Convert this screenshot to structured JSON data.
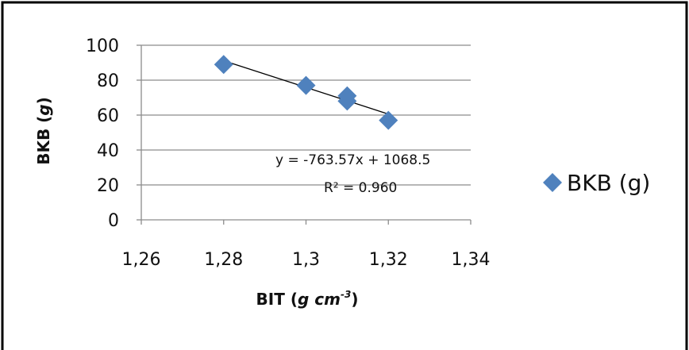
{
  "chart_data": {
    "type": "scatter",
    "xlabel": "BIT (",
    "xlabel_unit": "g cm",
    "xlabel_exp": "-3",
    "xlabel_close": ")",
    "ylabel": "BKB (",
    "ylabel_unit": "g",
    "ylabel_close": ")",
    "xlim": [
      1.26,
      1.34
    ],
    "ylim": [
      0,
      100
    ],
    "x_ticks": [
      1.26,
      1.28,
      1.3,
      1.32,
      1.34
    ],
    "x_tick_labels": [
      "1,26",
      "1,28",
      "1,3",
      "1,32",
      "1,34"
    ],
    "y_ticks": [
      0,
      20,
      40,
      60,
      80,
      100
    ],
    "y_tick_labels": [
      "0",
      "20",
      "40",
      "60",
      "80",
      "100"
    ],
    "grid": "horizontal",
    "legend_position": "right",
    "series": [
      {
        "name": "BKB (g)",
        "marker": "diamond",
        "color": "#4f81bd",
        "points": [
          {
            "x": 1.28,
            "y": 89
          },
          {
            "x": 1.3,
            "y": 77
          },
          {
            "x": 1.31,
            "y": 71
          },
          {
            "x": 1.31,
            "y": 68
          },
          {
            "x": 1.32,
            "y": 57
          }
        ]
      }
    ],
    "trendline": {
      "slope": -763.57,
      "intercept": 1068.5,
      "x_range": [
        1.28,
        1.32
      ],
      "color": "#000000"
    },
    "annotations": {
      "equation": "y = -763.57x + 1068.5",
      "r_squared": "R² = 0.960"
    }
  }
}
